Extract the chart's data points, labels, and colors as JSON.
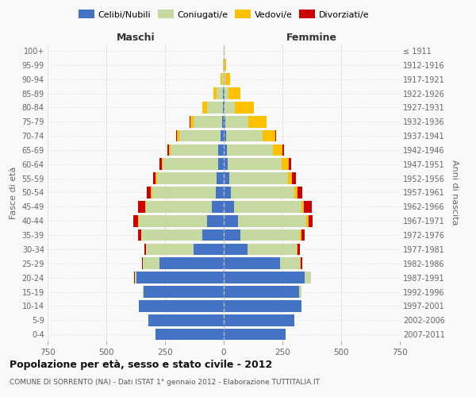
{
  "age_groups": [
    "0-4",
    "5-9",
    "10-14",
    "15-19",
    "20-24",
    "25-29",
    "30-34",
    "35-39",
    "40-44",
    "45-49",
    "50-54",
    "55-59",
    "60-64",
    "65-69",
    "70-74",
    "75-79",
    "80-84",
    "85-89",
    "90-94",
    "95-99",
    "100+"
  ],
  "birth_years": [
    "2007-2011",
    "2002-2006",
    "1997-2001",
    "1992-1996",
    "1987-1991",
    "1982-1986",
    "1977-1981",
    "1972-1976",
    "1967-1971",
    "1962-1966",
    "1957-1961",
    "1952-1956",
    "1947-1951",
    "1942-1946",
    "1937-1941",
    "1932-1936",
    "1927-1931",
    "1922-1926",
    "1917-1921",
    "1912-1916",
    "≤ 1911"
  ],
  "males": {
    "celibi": [
      290,
      320,
      360,
      340,
      370,
      275,
      130,
      90,
      70,
      50,
      35,
      30,
      25,
      25,
      15,
      8,
      5,
      3,
      1,
      1,
      0
    ],
    "coniugati": [
      0,
      0,
      0,
      5,
      10,
      70,
      200,
      260,
      290,
      280,
      270,
      255,
      235,
      200,
      175,
      120,
      65,
      28,
      7,
      2,
      0
    ],
    "vedovi": [
      0,
      0,
      0,
      0,
      0,
      0,
      2,
      3,
      4,
      5,
      5,
      5,
      5,
      8,
      10,
      15,
      20,
      12,
      6,
      2,
      1
    ],
    "divorziati": [
      0,
      0,
      0,
      0,
      2,
      4,
      7,
      13,
      20,
      30,
      18,
      12,
      9,
      7,
      4,
      3,
      2,
      1,
      0,
      0,
      0
    ]
  },
  "females": {
    "nubili": [
      265,
      300,
      330,
      320,
      345,
      240,
      100,
      70,
      60,
      45,
      30,
      22,
      18,
      15,
      10,
      6,
      3,
      2,
      1,
      0,
      0
    ],
    "coniugate": [
      0,
      0,
      0,
      10,
      25,
      85,
      210,
      255,
      290,
      285,
      270,
      250,
      230,
      195,
      155,
      100,
      45,
      18,
      5,
      1,
      0
    ],
    "vedove": [
      0,
      0,
      0,
      0,
      0,
      2,
      4,
      6,
      10,
      12,
      15,
      20,
      28,
      40,
      55,
      75,
      80,
      50,
      22,
      8,
      2
    ],
    "divorziate": [
      0,
      0,
      0,
      0,
      2,
      6,
      10,
      14,
      18,
      32,
      20,
      15,
      10,
      7,
      4,
      3,
      2,
      1,
      0,
      0,
      0
    ]
  },
  "colors": {
    "celibi": "#4472c4",
    "coniugati": "#c5d9a0",
    "vedovi": "#ffc000",
    "divorziati": "#cc0000"
  },
  "title": "Popolazione per età, sesso e stato civile - 2012",
  "subtitle": "COMUNE DI SORRENTO (NA) - Dati ISTAT 1° gennaio 2012 - Elaborazione TUTTITALIA.IT",
  "ylabel": "Fasce di età",
  "right_ylabel": "Anni di nascita",
  "xlabel_left": "Maschi",
  "xlabel_right": "Femmine",
  "xlim": 750,
  "background_color": "#f9f9f9",
  "grid_color": "#cccccc"
}
